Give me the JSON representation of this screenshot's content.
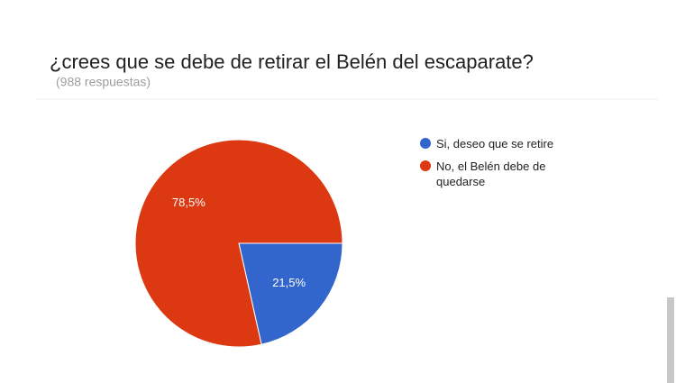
{
  "chart_data": {
    "type": "pie",
    "title": "¿crees que se debe de retirar el Belén del escaparate?",
    "subtitle": "(988 respuestas)",
    "categories": [
      "Si, deseo que se retire",
      "No, el Belén debe de quedarse"
    ],
    "values": [
      21.5,
      78.5
    ],
    "value_labels": [
      "21,5%",
      "78,5%"
    ],
    "colors": [
      "#3366cc",
      "#dc3912"
    ],
    "legend": "right"
  }
}
